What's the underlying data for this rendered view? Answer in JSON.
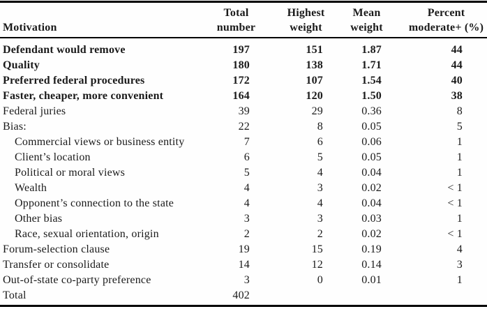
{
  "colors": {
    "background": "#fefefe",
    "text": "#1a1a1a",
    "rule": "#000000"
  },
  "header": {
    "motivation": "Motivation",
    "total": {
      "line1": "Total",
      "line2": "number"
    },
    "highest": {
      "line1": "Highest",
      "line2": "weight"
    },
    "mean": {
      "line1": "Mean",
      "line2": "weight"
    },
    "percent": {
      "line1": "Percent",
      "line2": "moderate+ (%)"
    }
  },
  "rows": [
    {
      "label": "Defendant would remove",
      "total": "197",
      "highest": "151",
      "mean": "1.87",
      "percent": "44"
    },
    {
      "label": "Quality",
      "total": "180",
      "highest": "138",
      "mean": "1.71",
      "percent": "44"
    },
    {
      "label": "Preferred federal procedures",
      "total": "172",
      "highest": "107",
      "mean": "1.54",
      "percent": "40"
    },
    {
      "label": "Faster, cheaper, more convenient",
      "total": "164",
      "highest": "120",
      "mean": "1.50",
      "percent": "38"
    },
    {
      "label": "Federal juries",
      "total": "39",
      "highest": "29",
      "mean": "0.36",
      "percent": "8"
    },
    {
      "label": "Bias:",
      "total": "22",
      "highest": "8",
      "mean": "0.05",
      "percent": "5"
    },
    {
      "label": "Commercial views or business entity",
      "total": "7",
      "highest": "6",
      "mean": "0.06",
      "percent": "1"
    },
    {
      "label": "Client’s location",
      "total": "6",
      "highest": "5",
      "mean": "0.05",
      "percent": "1"
    },
    {
      "label": "Political or moral views",
      "total": "5",
      "highest": "4",
      "mean": "0.04",
      "percent": "1"
    },
    {
      "label": "Wealth",
      "total": "4",
      "highest": "3",
      "mean": "0.02",
      "percent": "< 1"
    },
    {
      "label": "Opponent’s connection to the state",
      "total": "4",
      "highest": "4",
      "mean": "0.04",
      "percent": "< 1"
    },
    {
      "label": "Other bias",
      "total": "3",
      "highest": "3",
      "mean": "0.03",
      "percent": "1"
    },
    {
      "label": "Race, sexual orientation, origin",
      "total": "2",
      "highest": "2",
      "mean": "0.02",
      "percent": "< 1"
    },
    {
      "label": "Forum-selection clause",
      "total": "19",
      "highest": "15",
      "mean": "0.19",
      "percent": "4"
    },
    {
      "label": "Transfer or consolidate",
      "total": "14",
      "highest": "12",
      "mean": "0.14",
      "percent": "3"
    },
    {
      "label": "Out-of-state co-party preference",
      "total": "3",
      "highest": "0",
      "mean": "0.01",
      "percent": "1"
    },
    {
      "label": "Total",
      "total": "402",
      "highest": "",
      "mean": "",
      "percent": ""
    }
  ]
}
